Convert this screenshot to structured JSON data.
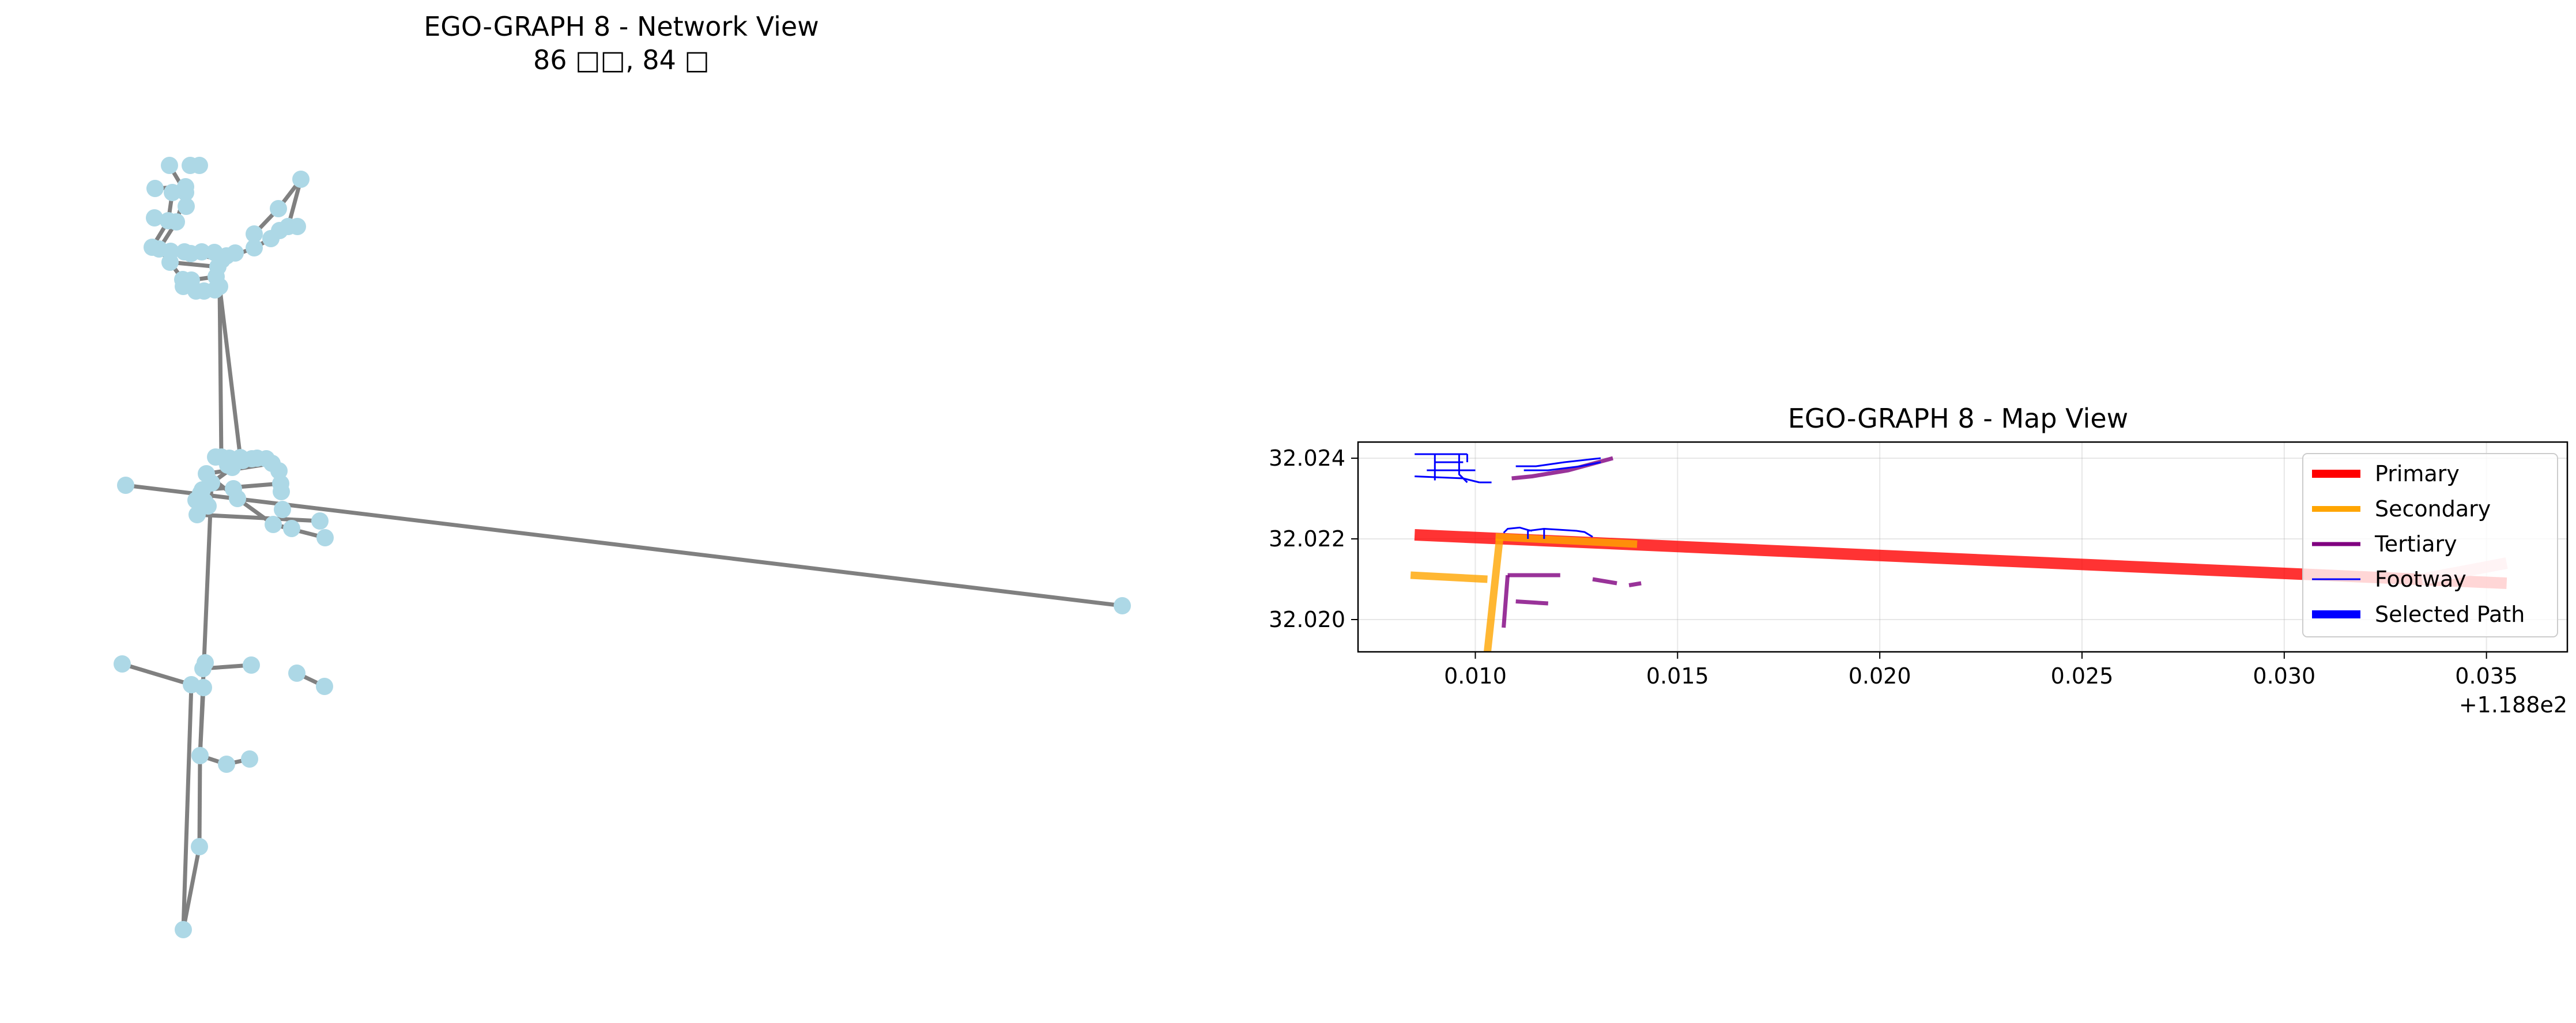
{
  "figure": {
    "left_title_line1": "EGO-GRAPH 8 - Network View",
    "left_title_line2": "86 □□, 84 □",
    "right_title": "EGO-GRAPH 8 - Map View"
  },
  "chart_data": [
    {
      "type": "network",
      "title": "EGO-GRAPH 8 - Network View",
      "subtitle": "86 □□, 84 □",
      "axes_visible": false,
      "node_color": "#add8e6",
      "edge_color": "#808080"
    },
    {
      "type": "line",
      "title": "EGO-GRAPH 8 - Map View",
      "x_offset_label": "+1.188e2",
      "x_offset": 118.8,
      "xlim": [
        0.0071,
        0.037
      ],
      "ylim": [
        32.0192,
        32.0244
      ],
      "xticks": [
        0.01,
        0.015,
        0.02,
        0.025,
        0.03,
        0.035
      ],
      "xtick_labels": [
        "0.010",
        "0.015",
        "0.020",
        "0.025",
        "0.030",
        "0.035"
      ],
      "yticks": [
        32.02,
        32.022,
        32.024
      ],
      "ytick_labels": [
        "32.020",
        "32.022",
        "32.024"
      ],
      "grid": true,
      "legend_position": "upper right",
      "legend": [
        {
          "label": "Primary",
          "color": "#ff0000"
        },
        {
          "label": "Secondary",
          "color": "#ffa500"
        },
        {
          "label": "Tertiary",
          "color": "#800080"
        },
        {
          "label": "Footway",
          "color": "#0000ff"
        },
        {
          "label": "Selected Path",
          "color": "#0000ff"
        }
      ],
      "series": [
        {
          "category": "Primary",
          "color": "#ff0000",
          "points": [
            [
              0.0085,
              32.0221
            ],
            [
              0.0355,
              32.0209
            ]
          ]
        },
        {
          "category": "Primary",
          "color": "#ffb6c1",
          "points": [
            [
              0.0334,
              32.021
            ],
            [
              0.0355,
              32.0214
            ]
          ]
        },
        {
          "category": "Secondary",
          "color": "#ffa500",
          "points": [
            [
              0.0105,
              32.02205
            ],
            [
              0.014,
              32.02187
            ]
          ]
        },
        {
          "category": "Secondary",
          "color": "#ffa500",
          "points": [
            [
              0.0084,
              32.0211
            ],
            [
              0.0103,
              32.021
            ]
          ]
        },
        {
          "category": "Secondary",
          "color": "#ffa500",
          "points": [
            [
              0.0106,
              32.022
            ],
            [
              0.0103,
              32.0192
            ]
          ]
        },
        {
          "category": "Tertiary",
          "color": "#800080",
          "points": [
            [
              0.0108,
              32.0211
            ],
            [
              0.0121,
              32.0211
            ]
          ]
        },
        {
          "category": "Tertiary",
          "color": "#800080",
          "points": [
            [
              0.0108,
              32.0211
            ],
            [
              0.0107,
              32.0198
            ]
          ]
        },
        {
          "category": "Tertiary",
          "color": "#800080",
          "points": [
            [
              0.011,
              32.02045
            ],
            [
              0.0118,
              32.0204
            ]
          ]
        },
        {
          "category": "Tertiary",
          "color": "#800080",
          "points": [
            [
              0.0129,
              32.021
            ],
            [
              0.0135,
              32.0209
            ]
          ]
        },
        {
          "category": "Tertiary",
          "color": "#800080",
          "points": [
            [
              0.0138,
              32.02085
            ],
            [
              0.0141,
              32.0209
            ]
          ]
        },
        {
          "category": "Tertiary",
          "color": "#800080",
          "points": [
            [
              0.0109,
              32.0235
            ],
            [
              0.0114,
              32.02355
            ],
            [
              0.0123,
              32.0237
            ],
            [
              0.0134,
              32.024
            ]
          ]
        },
        {
          "category": "Footway",
          "color": "#0000ff",
          "points": [
            [
              0.0085,
              32.0241
            ],
            [
              0.0098,
              32.0241
            ]
          ]
        },
        {
          "category": "Footway",
          "color": "#0000ff",
          "points": [
            [
              0.0085,
              32.02355
            ],
            [
              0.0097,
              32.0235
            ],
            [
              0.0101,
              32.0234
            ]
          ]
        },
        {
          "category": "Footway",
          "color": "#0000ff",
          "points": [
            [
              0.009,
              32.0239
            ],
            [
              0.0097,
              32.0239
            ]
          ]
        },
        {
          "category": "Footway",
          "color": "#0000ff",
          "points": [
            [
              0.0088,
              32.0237
            ],
            [
              0.01,
              32.0237
            ]
          ]
        },
        {
          "category": "Footway",
          "color": "#0000ff",
          "points": [
            [
              0.009,
              32.0241
            ],
            [
              0.009,
              32.02345
            ]
          ]
        },
        {
          "category": "Footway",
          "color": "#0000ff",
          "points": [
            [
              0.0096,
              32.0241
            ],
            [
              0.0096,
              32.0236
            ],
            [
              0.0098,
              32.0234
            ]
          ]
        },
        {
          "category": "Footway",
          "color": "#0000ff",
          "points": [
            [
              0.0098,
              32.0241
            ],
            [
              0.0098,
              32.0239
            ]
          ]
        },
        {
          "category": "Footway",
          "color": "#0000ff",
          "points": [
            [
              0.0101,
              32.0234
            ],
            [
              0.0104,
              32.0234
            ]
          ]
        },
        {
          "category": "Footway",
          "color": "#0000ff",
          "points": [
            [
              0.011,
              32.0238
            ],
            [
              0.0115,
              32.0238
            ],
            [
              0.0122,
              32.0239
            ],
            [
              0.0131,
              32.024
            ]
          ]
        },
        {
          "category": "Footway",
          "color": "#0000ff",
          "points": [
            [
              0.0112,
              32.0237
            ],
            [
              0.0118,
              32.0237
            ],
            [
              0.0126,
              32.0238
            ],
            [
              0.0131,
              32.0239
            ]
          ]
        },
        {
          "category": "Footway",
          "color": "#0000ff",
          "points": [
            [
              0.0107,
              32.02215
            ],
            [
              0.0108,
              32.02225
            ],
            [
              0.0111,
              32.02228
            ],
            [
              0.0113,
              32.02222
            ],
            [
              0.0114,
              32.0222
            ]
          ]
        },
        {
          "category": "Footway",
          "color": "#0000ff",
          "points": [
            [
              0.0113,
              32.0222
            ],
            [
              0.0117,
              32.02225
            ],
            [
              0.0125,
              32.0222
            ],
            [
              0.0127,
              32.02217
            ],
            [
              0.0129,
              32.02205
            ]
          ]
        },
        {
          "category": "Footway",
          "color": "#0000ff",
          "points": [
            [
              0.0117,
              32.02225
            ],
            [
              0.0117,
              32.022
            ]
          ]
        },
        {
          "category": "Footway",
          "color": "#0000ff",
          "points": [
            [
              0.0113,
              32.0222
            ],
            [
              0.0113,
              32.022
            ]
          ]
        }
      ]
    }
  ]
}
